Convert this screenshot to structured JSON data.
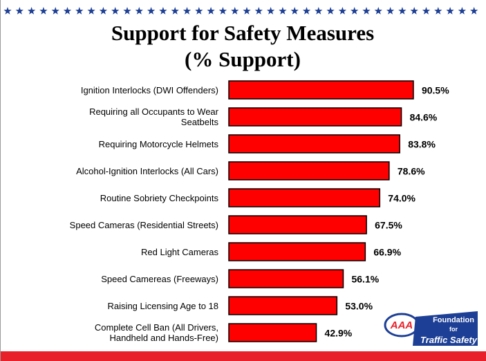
{
  "chart_data": {
    "type": "bar",
    "orientation": "horizontal",
    "title": "Support for Safety Measures",
    "subtitle": "(% Support)",
    "categories": [
      "Ignition Interlocks (DWI Offenders)",
      "Requiring all Occupants to Wear\nSeatbelts",
      "Requiring Motorcycle Helmets",
      "Alcohol-Ignition Interlocks (All Cars)",
      "Routine Sobriety Checkpoints",
      "Speed Cameras (Residential Streets)",
      "Red Light Cameras",
      "Speed Camereas (Freeways)",
      "Raising Licensing Age to 18",
      "Complete Cell Ban (All Drivers,\nHandheld and Hands-Free)"
    ],
    "values": [
      90.5,
      84.6,
      83.8,
      78.6,
      74.0,
      67.5,
      66.9,
      56.1,
      53.0,
      42.9
    ],
    "value_labels": [
      "90.5%",
      "84.6%",
      "83.8%",
      "78.6%",
      "74.0%",
      "67.5%",
      "66.9%",
      "56.1%",
      "53.0%",
      "42.9%"
    ],
    "color": "#ff0000"
  },
  "logo": {
    "mark": "AAA",
    "line1": "Foundation",
    "line2": "for",
    "line3": "Traffic Safety"
  }
}
